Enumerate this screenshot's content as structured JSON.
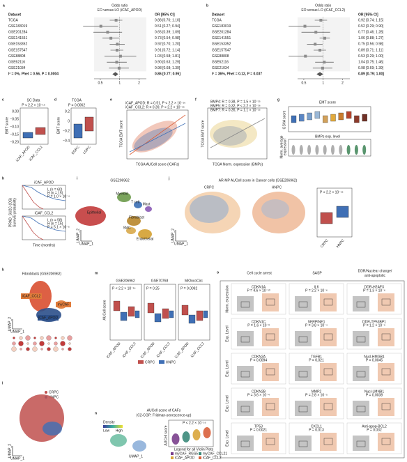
{
  "chart_data": [
    {
      "type": "forest",
      "panel": "a",
      "title": "Odds ratio",
      "subtitle": "EO versus LO (iCAF_APOD)",
      "category_header": "Dataset",
      "value_header": "OR [95% CI]",
      "categories": [
        "TCGA",
        "GSE183019",
        "GSE201284",
        "GSE141551",
        "GSE153352",
        "GSE157547",
        "GSE88808",
        "GSE62116",
        "GSE21034",
        "I² = 0%, Phet = 0.56, P = 0.0004"
      ],
      "values": [
        0.88,
        0.51,
        0.65,
        0.73,
        0.92,
        0.91,
        1.03,
        0.9,
        0.98,
        0.86
      ],
      "lower": [
        0.7,
        0.27,
        0.39,
        0.54,
        0.7,
        0.72,
        0.58,
        0.63,
        0.68,
        0.77
      ],
      "upper": [
        1.1,
        0.94,
        1.09,
        0.98,
        1.2,
        1.14,
        1.81,
        1.29,
        1.39,
        0.95
      ],
      "value_labels": [
        "0.88 [0.70; 1.10]",
        "0.51 [0.27; 0.94]",
        "0.65 [0.39; 1.09]",
        "0.73 [0.54; 0.98]",
        "0.92 [0.70; 1.20]",
        "0.91 [0.72; 1.14]",
        "1.03 [0.58; 1.81]",
        "0.90 [0.63; 1.29]",
        "0.98 [0.68; 1.39]",
        "0.86 [0.77; 0.95]"
      ],
      "xlim": [
        0.4,
        2.6
      ],
      "xticks": [
        0.5,
        1,
        2
      ],
      "log_x": true,
      "color": "#8c8c8c"
    },
    {
      "type": "forest",
      "panel": "b",
      "title": "Odds ratio",
      "subtitle": "EO versus LO (iCAF_CCL2)",
      "category_header": "Dataset",
      "value_header": "OR [95% CI]",
      "categories": [
        "TCGA",
        "GSE183019",
        "GSE201284",
        "GSE141551",
        "GSE153352",
        "GSE157547",
        "GSE88808",
        "GSE62116",
        "GSE21034",
        "I² = 36%, Phet = 0.12, P = 0.037"
      ],
      "values": [
        0.92,
        0.52,
        0.77,
        1.06,
        0.75,
        0.89,
        0.53,
        1.04,
        0.98,
        0.89
      ],
      "lower": [
        0.74,
        0.29,
        0.46,
        0.88,
        0.56,
        0.71,
        0.29,
        0.75,
        0.69,
        0.79
      ],
      "upper": [
        1.15,
        0.9,
        1.28,
        1.27,
        0.98,
        1.11,
        1.0,
        1.46,
        1.39,
        1.0
      ],
      "value_labels": [
        "0.92 [0.74; 1.15]",
        "0.52 [0.29; 0.90]",
        "0.77 [0.46; 1.28]",
        "1.06 [0.88; 1.27]",
        "0.75 [0.56; 0.98]",
        "0.89 [0.71; 1.11]",
        "0.53 [0.29; 1.00]",
        "1.04 [0.75; 1.46]",
        "0.98 [0.69; 1.39]",
        "0.89 [0.79; 1.00]"
      ],
      "xlim": [
        0.4,
        2.6
      ],
      "xticks": [
        0.5,
        1,
        2
      ],
      "log_x": true,
      "color": "#8c8c8c"
    }
  ],
  "panels": {
    "c": {
      "letter": "c",
      "title": "SC Data",
      "p": "P < 2.2 × 10⁻¹⁶",
      "ylabel": "EMT score",
      "yticks": [
        "0.00",
        "−0.05",
        "−0.10",
        "−0.15",
        "−0.20"
      ],
      "xlabels": [
        "iCAF_APOD",
        "iCAF_CCL2"
      ]
    },
    "d": {
      "letter": "d",
      "title": "TCGA",
      "p": "P = 0.0062",
      "ylabel": "EMT score",
      "yticks": [
        "0.2",
        "0",
        "−0.2",
        "−0.4"
      ],
      "xlabels": [
        "EOPC",
        "LOPC"
      ]
    },
    "e": {
      "letter": "e",
      "legend": [
        "iCAF_APOD: R = 0.51, P < 2.2 × 10⁻¹⁶",
        "iCAF_CCL2: R = 0.39, P < 2.2 × 10⁻¹⁶"
      ],
      "ylabel": "TCGA EMT score",
      "xlabel": "TCGA AUCell score (iCAFs)"
    },
    "f": {
      "letter": "f",
      "legend": [
        "BMP4: R = 0.38, P = 1.5 × 10⁻¹⁵",
        "BMP5: R = 0.32, P < 2.2 × 10⁻¹⁶",
        "BMP7: R = 0.35, P = 1.1 × 10⁻¹⁵"
      ],
      "ylabel": "TCGA EMT score",
      "xlabel": "TCGA Norm. expression (BMPs)"
    },
    "g": {
      "letter": "g",
      "title": "EMT score",
      "ylabel": "GSVA score",
      "subtitle": "BMPs exp. level",
      "ylabel2": [
        "Norm. average",
        "expression"
      ]
    },
    "h": {
      "letter": "h",
      "ylabel": [
        "PRAD_SU2C (OS)",
        "Survival probability"
      ],
      "xlabel": "Time (months)",
      "plots": [
        {
          "title": "iCAF_APOD",
          "legend": [
            "L (n = 60)",
            "H (n = 15)"
          ],
          "p": "P = 1.0 × 10⁻⁴"
        },
        {
          "title": "iCAF_CCL2",
          "legend": [
            "L (n = 58)",
            "H (n = 15)"
          ],
          "p": "P = 5.1 × 10⁻⁵"
        }
      ]
    },
    "i": {
      "letter": "i",
      "title": "GSE206962",
      "clusters": [
        "Myeloid",
        "T cell",
        "Mast",
        "Epithelial",
        "Fibroblast",
        "SMC",
        "Endothelial"
      ],
      "xlabel": "UMAP_1",
      "ylabel": "UMAP_2"
    },
    "j": {
      "letter": "j",
      "title": "AR-MP AUCell score in Cancer cells (GSE206962)",
      "groups": [
        "CRPC",
        "HNPC"
      ],
      "p": "P < 2.2 × 10⁻¹⁶",
      "xlabel": "UMAP_1",
      "ylabel": "UMAP_2"
    },
    "k": {
      "letter": "k",
      "title": "Fibroblasts (GSE206962)",
      "clusters": [
        "iCAF_CCL2",
        "myCAF",
        "iCAF_APOD"
      ],
      "xlabel": "UMAP_1",
      "ylabel": "UMAP_2"
    },
    "l": {
      "letter": "l",
      "groups": [
        "CRPC",
        "HNPC"
      ],
      "xlabel": "UMAP_1",
      "ylabel": "UMAP_2"
    },
    "m": {
      "letter": "m",
      "titles": [
        "GSE206962",
        "GSE70768",
        "MiOncoCirc"
      ],
      "ylabel": "AUCell score",
      "p": [
        "P < 2.2 × 10⁻¹⁶",
        "P = 0.25",
        "P = 0.0092"
      ],
      "xlabels": [
        "iCAF_APOD",
        "iCAF_CCL2"
      ],
      "legend": [
        "CRPC",
        "HNPC"
      ]
    },
    "n": {
      "letter": "n",
      "title": [
        "AUCell score of CAFs",
        "(C2-CGP: Fridman-senescence-up)"
      ],
      "density": "Density",
      "low": "Low",
      "high": "High",
      "ylabel": "AUCell score",
      "p": "P < 2.2 × 10⁻¹⁶",
      "legend_title": "Legend for all Violin Plots",
      "legend": [
        "myCAF_RGS5",
        "myCAF_CCL21",
        "iCAF_APOD",
        "iCAF_CCL2"
      ],
      "xlabel": "UMAP_1"
    },
    "o": {
      "letter": "o",
      "columns": [
        [
          "Cell cycle arrest"
        ],
        [
          "SASP"
        ],
        [
          "DDR/Nuclear change/",
          "anti-apoptotic"
        ]
      ],
      "ylabels": [
        "Norm. expression",
        "Exp. Level",
        "Exp. Level",
        "Exp. Level",
        "Exp. Level"
      ],
      "cells": [
        [
          {
            "gene": "CDKN1A",
            "p": "P = 4.6 × 10⁻¹³"
          },
          {
            "gene": "IL6",
            "p": "P = 2.2 × 10⁻⁶"
          },
          {
            "gene": "DDR-H2AFX",
            "p": "P = 1.3 × 10⁻⁶"
          }
        ],
        [
          {
            "gene": "CDKN1C",
            "p": "P = 1.6 × 10⁻³"
          },
          {
            "gene": "SERPINE1",
            "p": "P = 3.8 × 10⁻⁴"
          },
          {
            "gene": "DDR-TP53BP1",
            "p": "P = 1.2 × 10⁻⁵"
          }
        ],
        [
          {
            "gene": "CDKN2A",
            "p": "P = 0.0094"
          },
          {
            "gene": "TGFB1",
            "p": "P = 0.021"
          },
          {
            "gene": "Nucl-HMGB1",
            "p": "P = 0.0045"
          }
        ],
        [
          {
            "gene": "CDKN2B",
            "p": "P = 3.6 × 10⁻⁴"
          },
          {
            "gene": "MMP2",
            "p": "P = 2.8 × 10⁻⁵"
          },
          {
            "gene": "Nucl-LMNB1",
            "p": "P = 0.0038"
          }
        ],
        [
          {
            "gene": "TP53",
            "p": "P = 0.0021"
          },
          {
            "gene": "CXCL1",
            "p": "P = 0.013"
          },
          {
            "gene": "Anti-apop-BCL2",
            "p": "P = 0.032"
          }
        ]
      ]
    }
  }
}
